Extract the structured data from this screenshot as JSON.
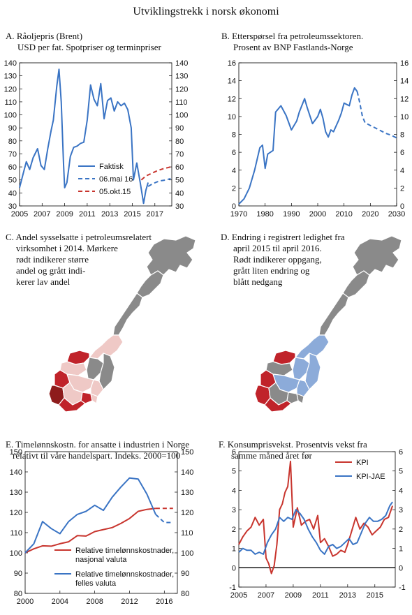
{
  "page_title": "Utviklingstrekk  i norsk økonomi",
  "colors": {
    "blue": "#3a74c4",
    "red": "#c8352e",
    "dark_red": "#8e1c1c",
    "mid_red": "#c0232a",
    "pink": "#efc9c6",
    "grey": "#8a8a8a",
    "light_blue": "#8cabd9"
  },
  "panel_a": {
    "title_lines": [
      "A. Råoljepris (Brent)",
      "USD per fat. Spotpriser og terminpriser"
    ]
  },
  "panel_b": {
    "title_lines": [
      "B. Etterspørsel fra petroleumssektoren.",
      "Prosent av BNP Fastlands-Norge"
    ]
  },
  "panel_c": {
    "title_lines": [
      "C. Andel sysselsatte  i petroleumsrelatert",
      "virksomhet i 2014. Mørkere",
      "rødt indikerer større",
      "andel og grått indi-",
      "kerer lav andel"
    ]
  },
  "panel_d": {
    "title_lines": [
      "D. Endring i registrert ledighet fra",
      "april 2015 til april 2016.",
      "Rødt indikerer oppgang,",
      "grått liten endring og",
      "blått nedgang"
    ]
  },
  "panel_e": {
    "title_lines": [
      "E. Timelønnskostn. for ansatte i industrien i Norge",
      "relativt til våre handelspart. Indeks. 2000=100"
    ]
  },
  "panel_f": {
    "title_lines": [
      "F.  Konsumprisvekst. Prosentvis vekst fra",
      "samme måned året før"
    ]
  },
  "chart_data": [
    {
      "id": "A",
      "type": "line",
      "xlim": [
        2005,
        2018.5
      ],
      "ylim": [
        30,
        140
      ],
      "xticks": [
        2005,
        2007,
        2009,
        2011,
        2013,
        2015,
        2017
      ],
      "xtick_labels": [
        "2005",
        "2007",
        "2009",
        "2011",
        "2013",
        "2015",
        "2017"
      ],
      "yticks": [
        30,
        40,
        50,
        60,
        70,
        80,
        90,
        100,
        110,
        120,
        130,
        140
      ],
      "ytick_labels": [
        "30",
        "40",
        "50",
        "60",
        "70",
        "80",
        "90",
        "100",
        "110",
        "120",
        "130",
        "140"
      ],
      "legend_position": "right",
      "series": [
        {
          "name": "Faktisk",
          "color": "#3a74c4",
          "dash": false,
          "x": [
            2005.0,
            2005.3,
            2005.6,
            2005.9,
            2006.2,
            2006.6,
            2006.9,
            2007.2,
            2007.5,
            2007.8,
            2008.0,
            2008.3,
            2008.5,
            2008.7,
            2008.9,
            2009.0,
            2009.2,
            2009.5,
            2009.8,
            2010.1,
            2010.4,
            2010.7,
            2011.0,
            2011.3,
            2011.6,
            2011.9,
            2012.2,
            2012.5,
            2012.8,
            2013.1,
            2013.4,
            2013.7,
            2014.0,
            2014.3,
            2014.6,
            2014.9,
            2015.1,
            2015.4,
            2015.7,
            2016.0,
            2016.2,
            2016.4
          ],
          "y": [
            44,
            54,
            64,
            58,
            67,
            74,
            61,
            58,
            74,
            88,
            96,
            122,
            135,
            110,
            62,
            44,
            48,
            68,
            75,
            76,
            78,
            79,
            96,
            123,
            112,
            107,
            124,
            97,
            111,
            113,
            103,
            110,
            107,
            109,
            104,
            90,
            50,
            63,
            48,
            32,
            42,
            48
          ]
        },
        {
          "name": "06.mai 16",
          "color": "#3a74c4",
          "dash": true,
          "x": [
            2016.4,
            2016.8,
            2017.2,
            2017.6,
            2018.0,
            2018.4
          ],
          "y": [
            45,
            47,
            48.5,
            49.5,
            50,
            51
          ]
        },
        {
          "name": "05.okt.15",
          "color": "#c8352e",
          "dash": true,
          "x": [
            2015.8,
            2016.2,
            2016.7,
            2017.2,
            2017.7,
            2018.4
          ],
          "y": [
            50,
            53,
            55,
            57,
            58.5,
            60
          ]
        }
      ]
    },
    {
      "id": "B",
      "type": "line",
      "xlim": [
        1970,
        2030
      ],
      "ylim": [
        0,
        16
      ],
      "xticks": [
        1970,
        1980,
        1990,
        2000,
        2010,
        2020,
        2030
      ],
      "xtick_labels": [
        "1970",
        "1980",
        "1990",
        "2000",
        "2010",
        "2020",
        "2030"
      ],
      "yticks": [
        0,
        2,
        4,
        6,
        8,
        10,
        12,
        14,
        16
      ],
      "ytick_labels": [
        "0",
        "2",
        "4",
        "6",
        "8",
        "10",
        "12",
        "14",
        "16"
      ],
      "series": [
        {
          "name": "",
          "color": "#3a74c4",
          "dash": false,
          "x": [
            1970,
            1972,
            1974,
            1976,
            1978,
            1979,
            1980,
            1981,
            1983,
            1984,
            1986,
            1988,
            1990,
            1992,
            1993,
            1995,
            1996,
            1998,
            2000,
            2001,
            2002,
            2003,
            2004,
            2005,
            2006,
            2008,
            2009,
            2010,
            2012,
            2013,
            2014,
            2015
          ],
          "y": [
            0.2,
            0.8,
            2,
            4,
            6.5,
            6.8,
            4.2,
            5.8,
            6.2,
            10.5,
            11.2,
            10.1,
            8.5,
            9.5,
            10.5,
            12,
            11,
            9.2,
            10,
            10.8,
            9.8,
            8.3,
            7.7,
            8.5,
            8.3,
            9.6,
            10.4,
            11.5,
            11.2,
            12.4,
            13.2,
            12.8
          ]
        },
        {
          "name": "",
          "color": "#3a74c4",
          "dash": true,
          "x": [
            2015,
            2016,
            2017,
            2018,
            2020,
            2022,
            2024,
            2026,
            2028,
            2030
          ],
          "y": [
            12.8,
            11.5,
            10,
            9.3,
            9,
            8.7,
            8.4,
            8.1,
            7.9,
            7.6
          ]
        }
      ]
    },
    {
      "id": "E",
      "type": "line",
      "xlim": [
        2000,
        2017.5
      ],
      "ylim": [
        80,
        150
      ],
      "xticks": [
        2000,
        2004,
        2008,
        2012,
        2016
      ],
      "xtick_labels": [
        "2000",
        "2004",
        "2008",
        "2012",
        "2016"
      ],
      "yticks": [
        80,
        90,
        100,
        110,
        120,
        130,
        140,
        150
      ],
      "ytick_labels": [
        "80",
        "90",
        "100",
        "110",
        "120",
        "130",
        "140",
        "150"
      ],
      "legend_position": "lower-right",
      "series": [
        {
          "name": "Relative timelønnskostnader, nasjonal valuta",
          "legend_lines": [
            "Relative timelønnskostnader,",
            "nasjonal valuta"
          ],
          "color": "#c8352e",
          "dash": false,
          "x": [
            2000,
            2001,
            2002,
            2003,
            2004,
            2005,
            2006,
            2007,
            2008,
            2009,
            2010,
            2011,
            2012,
            2013,
            2014,
            2015
          ],
          "y": [
            100,
            102,
            103.5,
            103.3,
            104.5,
            105.5,
            108.5,
            108.3,
            110.5,
            111.5,
            112.5,
            114.5,
            117,
            120.5,
            121.5,
            122
          ]
        },
        {
          "name": "Relative timelønnskostnader, felles valuta",
          "legend_lines": [
            "Relative timelønnskostnader,",
            "felles valuta"
          ],
          "color": "#3a74c4",
          "dash": false,
          "x": [
            2000,
            2001,
            2002,
            2003,
            2004,
            2005,
            2006,
            2007,
            2008,
            2009,
            2010,
            2011,
            2012,
            2013,
            2014,
            2015
          ],
          "y": [
            100,
            104.5,
            115.5,
            112,
            109.5,
            115.5,
            119,
            120.5,
            123.5,
            121,
            127.5,
            132.5,
            137,
            136.5,
            129,
            119
          ]
        },
        {
          "name": "",
          "color": "#c8352e",
          "dash": true,
          "x": [
            2015,
            2016,
            2017
          ],
          "y": [
            122,
            122,
            122
          ]
        },
        {
          "name": "",
          "color": "#3a74c4",
          "dash": true,
          "x": [
            2015,
            2016,
            2017
          ],
          "y": [
            119,
            115,
            115
          ]
        }
      ]
    },
    {
      "id": "F",
      "type": "line",
      "xlim": [
        2005,
        2016.5
      ],
      "ylim": [
        -1,
        6
      ],
      "xticks": [
        2005,
        2007,
        2009,
        2011,
        2013,
        2015
      ],
      "xtick_labels": [
        "2005",
        "2007",
        "2009",
        "2011",
        "2013",
        "2015"
      ],
      "yticks": [
        -1,
        0,
        1,
        2,
        3,
        4,
        5,
        6
      ],
      "ytick_labels": [
        "-1",
        "0",
        "1",
        "2",
        "3",
        "4",
        "5",
        "6"
      ],
      "legend_position": "top-right",
      "series": [
        {
          "name": "KPI",
          "color": "#c8352e",
          "dash": false,
          "x": [
            2005.0,
            2005.3,
            2005.6,
            2005.9,
            2006.2,
            2006.5,
            2006.8,
            2007.0,
            2007.2,
            2007.4,
            2007.6,
            2007.8,
            2008.0,
            2008.2,
            2008.4,
            2008.6,
            2008.8,
            2009.0,
            2009.3,
            2009.6,
            2009.9,
            2010.2,
            2010.5,
            2010.8,
            2011.0,
            2011.3,
            2011.6,
            2011.9,
            2012.2,
            2012.5,
            2012.8,
            2013.0,
            2013.3,
            2013.6,
            2013.9,
            2014.2,
            2014.5,
            2014.8,
            2015.1,
            2015.4,
            2015.7,
            2016.0,
            2016.3
          ],
          "y": [
            1.2,
            1.6,
            1.9,
            2.1,
            2.6,
            2.2,
            2.5,
            0.5,
            0.2,
            -0.3,
            0.1,
            1.2,
            3.0,
            3.3,
            3.9,
            4.2,
            5.5,
            2.1,
            3.1,
            2.2,
            2.4,
            2.5,
            2.0,
            2.7,
            1.3,
            1.5,
            1.1,
            0.6,
            0.7,
            0.9,
            0.8,
            1.2,
            1.9,
            2.6,
            2.0,
            2.3,
            2.1,
            1.7,
            1.9,
            2.1,
            2.5,
            2.6,
            3.2
          ]
        },
        {
          "name": "KPI-JAE",
          "color": "#3a74c4",
          "dash": false,
          "x": [
            2005.0,
            2005.3,
            2005.6,
            2005.9,
            2006.2,
            2006.5,
            2006.8,
            2007.1,
            2007.4,
            2007.7,
            2008.0,
            2008.3,
            2008.6,
            2008.9,
            2009.2,
            2009.5,
            2009.8,
            2010.1,
            2010.4,
            2010.7,
            2011.0,
            2011.3,
            2011.6,
            2011.9,
            2012.2,
            2012.5,
            2012.8,
            2013.1,
            2013.4,
            2013.7,
            2014.0,
            2014.3,
            2014.6,
            2014.9,
            2015.2,
            2015.5,
            2015.8,
            2016.1,
            2016.3
          ],
          "y": [
            0.8,
            1.0,
            0.9,
            0.9,
            0.7,
            0.8,
            0.7,
            1.3,
            1.7,
            2.0,
            2.6,
            2.4,
            2.6,
            2.5,
            3.0,
            2.8,
            2.5,
            2.0,
            1.6,
            1.3,
            0.9,
            0.7,
            1.1,
            1.2,
            1.0,
            1.1,
            1.3,
            1.5,
            1.2,
            1.3,
            1.8,
            2.3,
            2.6,
            2.4,
            2.4,
            2.5,
            2.7,
            3.2,
            3.4
          ]
        }
      ],
      "zero_line": true
    }
  ]
}
